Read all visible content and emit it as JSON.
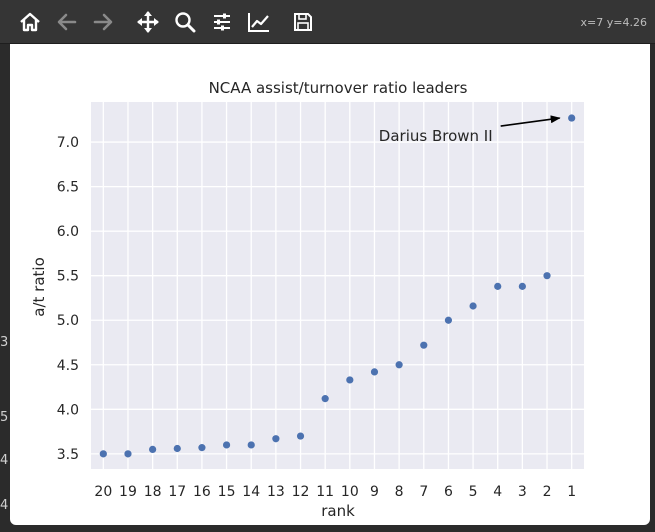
{
  "toolbar": {
    "icons": [
      "home-icon",
      "back-arrow-icon",
      "forward-arrow-icon",
      "pan-icon",
      "zoom-icon",
      "configure-subplots-icon",
      "edit-axis-icon",
      "save-icon"
    ],
    "coords": "x=7 y=4.26"
  },
  "background_edge": [
    "3",
    "5",
    "4",
    "4"
  ],
  "chart_data": {
    "type": "scatter",
    "title": "NCAA assist/turnover ratio leaders",
    "xlabel": "rank",
    "ylabel": "a/t ratio",
    "x_categories": [
      "20",
      "19",
      "18",
      "17",
      "16",
      "15",
      "14",
      "13",
      "12",
      "11",
      "10",
      "9",
      "8",
      "7",
      "6",
      "5",
      "4",
      "3",
      "2",
      "1"
    ],
    "y_values": [
      3.5,
      3.5,
      3.55,
      3.56,
      3.57,
      3.6,
      3.6,
      3.67,
      3.7,
      4.12,
      4.33,
      4.42,
      4.5,
      4.72,
      5.0,
      5.16,
      5.38,
      5.38,
      5.5,
      7.27
    ],
    "ylim": [
      3.33,
      7.45
    ],
    "y_ticks": [
      "3.5",
      "4.0",
      "4.5",
      "5.0",
      "5.5",
      "6.0",
      "6.5",
      "7.0"
    ],
    "grid": true,
    "annotation": {
      "text": "Darius Brown II",
      "target_rank": "1",
      "target_value": 7.27
    },
    "colors": {
      "point": "#4c72b0",
      "plot_bg": "#eaeaf2",
      "grid": "#ffffff",
      "text": "#262626"
    }
  }
}
